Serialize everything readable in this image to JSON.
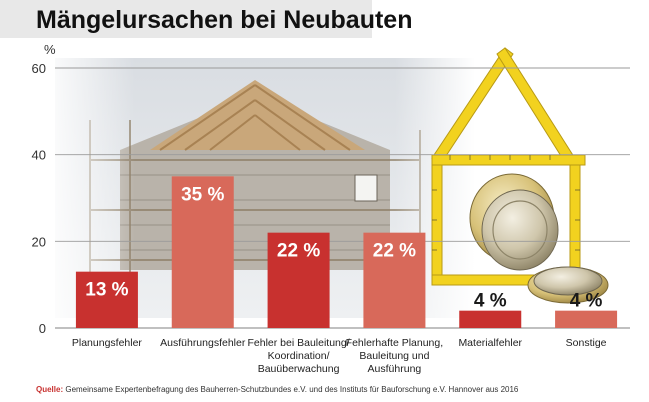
{
  "chart_data": {
    "type": "bar",
    "title": "Mängelursachen bei Neubauten",
    "ylabel": "%",
    "ylim": [
      0,
      60
    ],
    "yticks": [
      0,
      20,
      40,
      60
    ],
    "grid": true,
    "categories": [
      [
        "Planungsfehler"
      ],
      [
        "Ausführungsfehler"
      ],
      [
        "Fehler bei Bauleitung/",
        "Koordination/",
        "Bauüberwachung"
      ],
      [
        "Fehlerhafte Planung,",
        "Bauleitung und",
        "Ausführung"
      ],
      [
        "Materialfehler"
      ],
      [
        "Sonstige"
      ]
    ],
    "values": [
      13,
      35,
      22,
      22,
      4,
      4
    ],
    "data_labels": [
      "13 %",
      "35 %",
      "22 %",
      "22 %",
      "4 %",
      "4 %"
    ],
    "bar_colors": [
      "#c8312f",
      "#d8695a",
      "#c8312f",
      "#d8695a",
      "#c8312f",
      "#d8695a"
    ]
  },
  "source": {
    "label": "Quelle:",
    "text": " Gemeinsame Expertenbefragung des Bauherren-Schutzbundes e.V. und des Instituts für Bauforschung e.V. Hannover aus 2016"
  },
  "colors": {
    "title_bg": "#e8e8e8",
    "grid": "#9a9a9a",
    "label_on_bar": "#ffffff",
    "label_above_bar": "#1a1a1a",
    "source_label": "#c8312f",
    "ruler_yellow": "#f2d21f"
  },
  "icons": [
    "construction-photo",
    "folding-ruler-house-icon",
    "euro-coins-icon"
  ]
}
